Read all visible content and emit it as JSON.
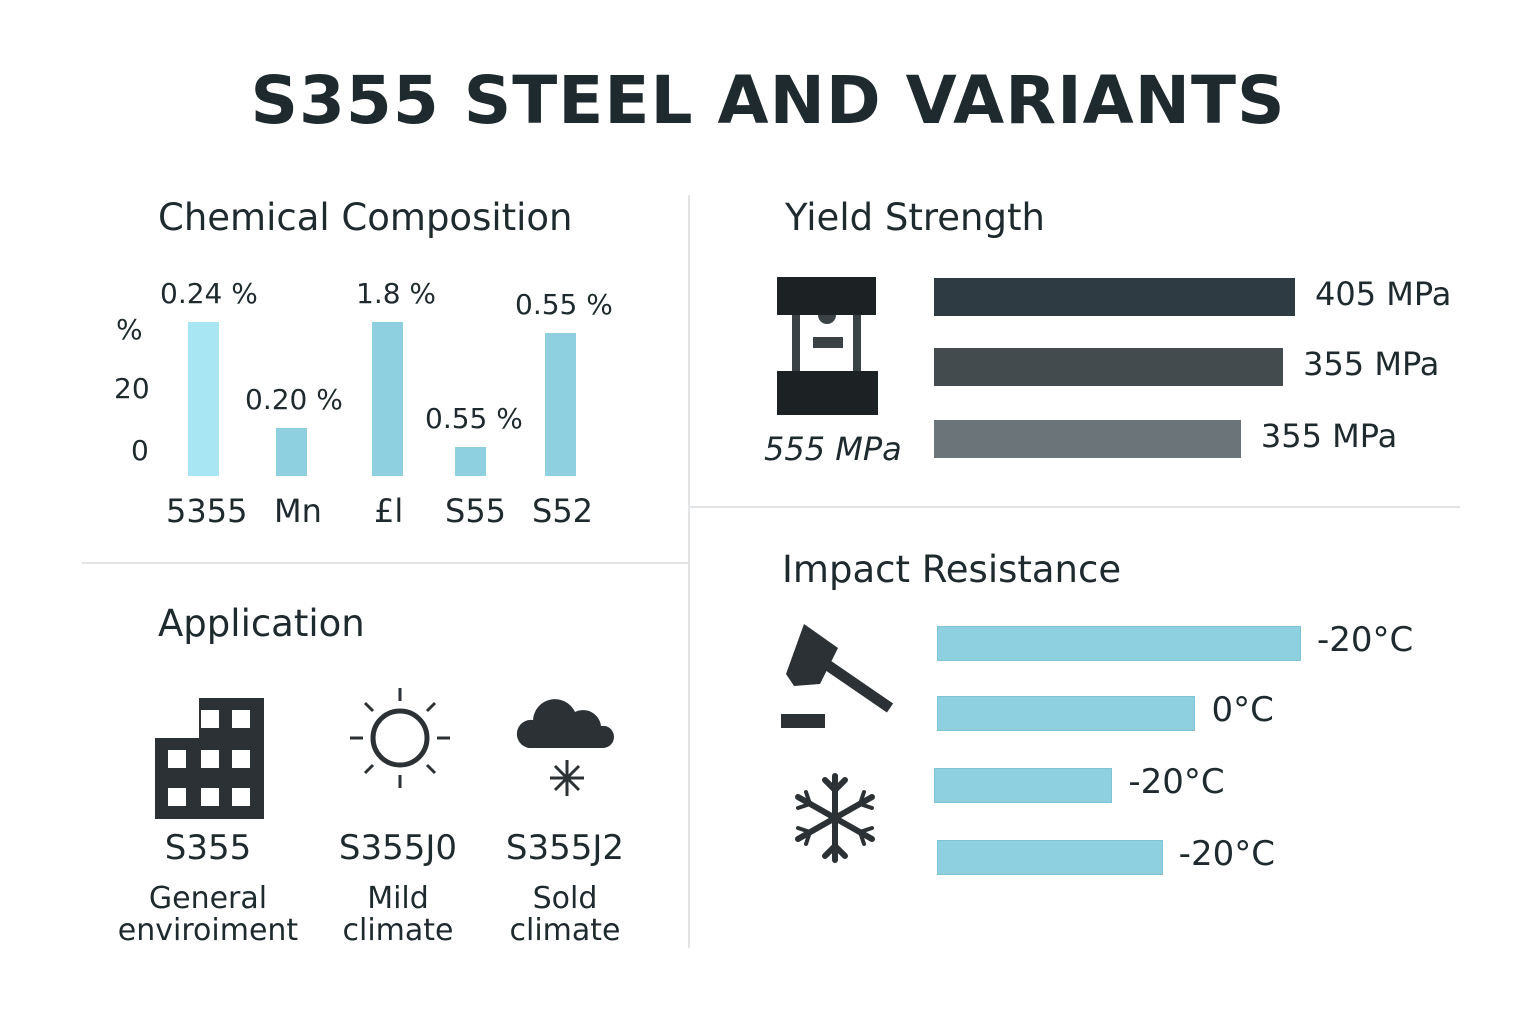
{
  "title": "S355 STEEL AND VARIANTS",
  "chemical": {
    "heading": "Chemical Composition",
    "axis": {
      "unit": "%",
      "ticks": [
        "20",
        "0"
      ]
    },
    "bars": [
      {
        "category": "5355",
        "label": "0.24 %",
        "level": 1.0,
        "color": "#a8e6f3"
      },
      {
        "category": "Mn",
        "label": "0.20 %",
        "level": 0.31,
        "color": "#8fd0e0"
      },
      {
        "category": "£l",
        "label": "1.8 %",
        "level": 1.0,
        "color": "#8fd0e0"
      },
      {
        "category": "S55",
        "label": "0.55 %",
        "level": 0.19,
        "color": "#8fd0e0"
      },
      {
        "category": "S52",
        "label": "0.55 %",
        "level": 0.93,
        "color": "#8fd0e0"
      }
    ]
  },
  "yield": {
    "heading": "Yield Strength",
    "icon_label": "555 MPa",
    "bars": [
      {
        "label": "405 MPa",
        "level": 1.0,
        "color": "#2e3b42"
      },
      {
        "label": "355 MPa",
        "level": 0.967,
        "color": "#444b4f"
      },
      {
        "label": "355 MPa",
        "level": 0.85,
        "color": "#6b7479"
      }
    ]
  },
  "application": {
    "heading": "Application",
    "items": [
      {
        "icon": "building-icon",
        "grade": "S355",
        "line1": "General",
        "line2": "enviroiment"
      },
      {
        "icon": "sun-icon",
        "grade": "S355J0",
        "line1": "Mild",
        "line2": "climate"
      },
      {
        "icon": "snow-cloud-icon",
        "grade": "S355J2",
        "line1": "Sold",
        "line2": "climate"
      }
    ]
  },
  "impact": {
    "heading": "Impact Resistance",
    "bars": [
      {
        "label": "-20°C",
        "level": 1.0
      },
      {
        "label": "0°C",
        "level": 0.71
      },
      {
        "label": "-20°C",
        "level": 0.49
      },
      {
        "label": "-20°C",
        "level": 0.62
      }
    ]
  },
  "chart_data": [
    {
      "type": "bar",
      "title": "Chemical Composition",
      "ylabel": "%",
      "categories": [
        "5355",
        "Mn",
        "£l",
        "S55",
        "S52"
      ],
      "data_labels": [
        "0.24 %",
        "0.20 %",
        "1.8 %",
        "0.55 %",
        "0.55 %"
      ],
      "values_relative": [
        1.0,
        0.31,
        1.0,
        0.19,
        0.93
      ]
    },
    {
      "type": "bar",
      "orientation": "horizontal",
      "title": "Yield Strength",
      "data_labels": [
        "405 MPa",
        "355 MPa",
        "355 MPa"
      ],
      "values_relative": [
        1.0,
        0.967,
        0.85
      ]
    },
    {
      "type": "bar",
      "orientation": "horizontal",
      "title": "Impact Resistance",
      "data_labels": [
        "-20°C",
        "0°C",
        "-20°C",
        "-20°C"
      ],
      "values_relative": [
        1.0,
        0.71,
        0.49,
        0.62
      ]
    }
  ]
}
